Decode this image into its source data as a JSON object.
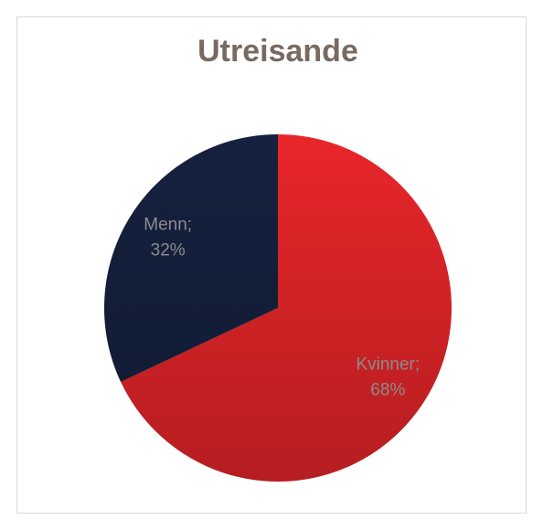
{
  "chart_data": {
    "type": "pie",
    "title": "Utreisande",
    "categories": [
      "Kvinner",
      "Menn"
    ],
    "values": [
      68,
      32
    ],
    "value_labels": [
      "68%",
      "32%"
    ],
    "label_separator": ";",
    "colors": [
      "#e8262a",
      "#15213f"
    ]
  }
}
